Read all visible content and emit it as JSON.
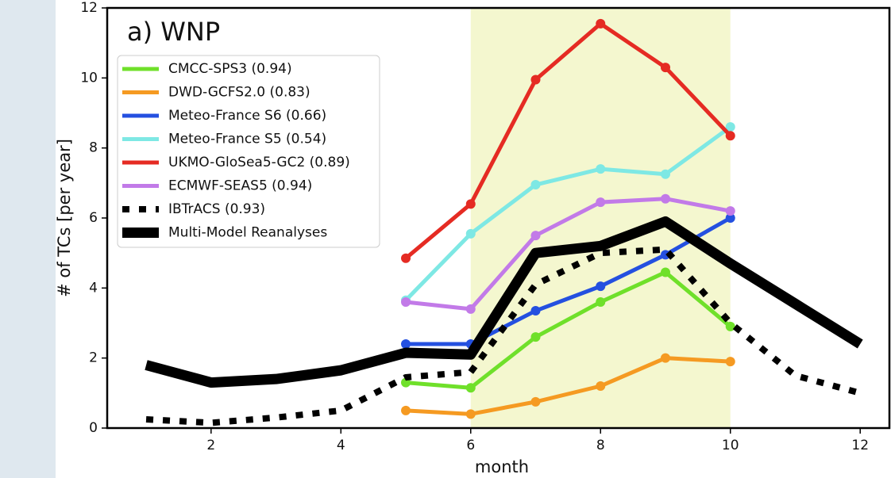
{
  "chart_data": {
    "type": "line",
    "title": "a) WNP",
    "x_label": "month",
    "y_label": "# of TCs [per year]",
    "x": [
      1,
      2,
      3,
      4,
      5,
      6,
      7,
      8,
      9,
      10,
      11,
      12
    ],
    "xlim": [
      0.4,
      12.45
    ],
    "xticks": [
      2,
      4,
      6,
      8,
      10,
      12
    ],
    "ylim": [
      0,
      12
    ],
    "yticks": [
      0,
      2,
      4,
      6,
      8,
      10,
      12
    ],
    "highlight_x": [
      6,
      10
    ],
    "highlight_color": "#f4f7cf",
    "legend": "upper left",
    "series": [
      {
        "name": "CMCC-SPS3 (0.94)",
        "color": "#6fe02a",
        "marker": "o",
        "values": [
          null,
          null,
          null,
          null,
          1.3,
          1.15,
          2.6,
          3.6,
          4.45,
          2.9,
          null,
          null
        ]
      },
      {
        "name": "DWD-GCFS2.0 (0.83)",
        "color": "#f59a22",
        "marker": "o",
        "values": [
          null,
          null,
          null,
          null,
          0.5,
          0.4,
          0.75,
          1.2,
          2.0,
          1.9,
          null,
          null
        ]
      },
      {
        "name": "Meteo-France S6 (0.66)",
        "color": "#2450e0",
        "marker": "o",
        "values": [
          null,
          null,
          null,
          null,
          2.4,
          2.4,
          3.35,
          4.05,
          4.95,
          6.0,
          null,
          null
        ]
      },
      {
        "name": "Meteo-France S5 (0.54)",
        "color": "#7ee8e4",
        "marker": "o",
        "values": [
          null,
          null,
          null,
          null,
          3.65,
          5.55,
          6.95,
          7.4,
          7.25,
          8.6,
          null,
          null
        ]
      },
      {
        "name": "UKMO-GloSea5-GC2 (0.89)",
        "color": "#e52b23",
        "marker": "o",
        "values": [
          null,
          null,
          null,
          null,
          4.85,
          6.4,
          9.95,
          11.55,
          10.3,
          8.35,
          null,
          null
        ]
      },
      {
        "name": "ECMWF-SEAS5 (0.94)",
        "color": "#c27ae8",
        "marker": "o",
        "values": [
          null,
          null,
          null,
          null,
          3.6,
          3.4,
          5.5,
          6.45,
          6.55,
          6.2,
          null,
          null
        ]
      },
      {
        "name": "IBTrACS (0.93)",
        "color": "#000000",
        "linestyle": "dotted",
        "values": [
          0.25,
          0.15,
          0.3,
          0.5,
          1.45,
          1.6,
          4.1,
          5.0,
          5.1,
          3.0,
          1.5,
          1.0
        ]
      },
      {
        "name": "Multi-Model Reanalyses",
        "color": "#000000",
        "linestyle": "thick",
        "values": [
          1.8,
          1.3,
          1.4,
          1.65,
          2.15,
          2.1,
          5.0,
          5.2,
          5.9,
          4.7,
          3.55,
          2.4
        ]
      }
    ]
  }
}
